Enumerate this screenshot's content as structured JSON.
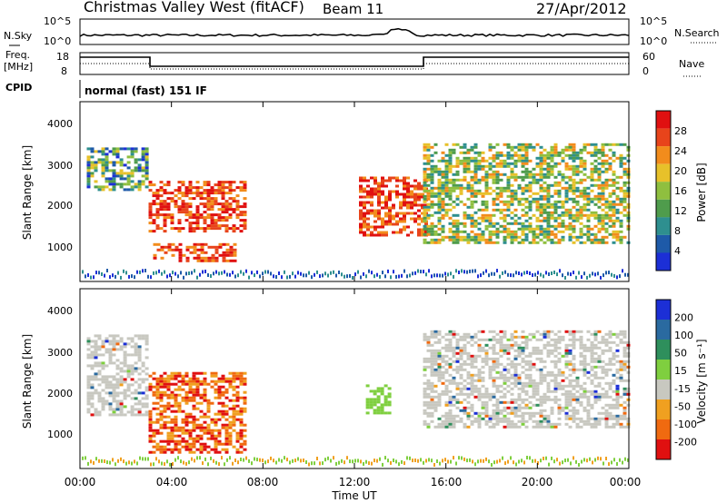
{
  "header": {
    "station": "Christmas Valley West (fitACF)",
    "beam": "Beam 11",
    "date": "27/Apr/2012"
  },
  "noise_panel": {
    "left_label": "N.Sky",
    "left_ticks": [
      "10^5",
      "10^0"
    ],
    "right_label": "N.Search",
    "right_ticks": [
      "10^5",
      "10^0"
    ]
  },
  "freq_panel": {
    "left_label_1": "Freq.",
    "left_label_2": "[MHz]",
    "left_ticks": [
      "18",
      "8"
    ],
    "right_label": "Nave",
    "right_ticks": [
      "60",
      "0"
    ]
  },
  "cpid": {
    "label": "CPID",
    "value": "normal (fast) 151 IF"
  },
  "x_axis": {
    "label": "Time UT",
    "ticks": [
      "00:00",
      "04:00",
      "08:00",
      "12:00",
      "16:00",
      "20:00",
      "00:00"
    ]
  },
  "chart_data": [
    {
      "type": "heatmap",
      "name": "power",
      "ylabel": "Slant Range [km]",
      "yticks": [
        "1000",
        "2000",
        "3000",
        "4000"
      ],
      "xlim": [
        0,
        24
      ],
      "ylim": [
        180,
        4500
      ],
      "colorbar": {
        "label": "Power [dB]",
        "ticks": [
          "4",
          "8",
          "12",
          "16",
          "20",
          "24",
          "28"
        ],
        "colors": [
          "#1c2fd6",
          "#1e5aa8",
          "#2e8f8f",
          "#4f9c4c",
          "#8fbf3f",
          "#e7c12a",
          "#f28c1c",
          "#e8441b",
          "#e01010"
        ]
      },
      "regions": [
        {
          "t": [
            0.3,
            3.0
          ],
          "r": [
            2400,
            3400
          ],
          "level": "low-mid"
        },
        {
          "t": [
            3.0,
            7.2
          ],
          "r": [
            1400,
            2600
          ],
          "level": "high"
        },
        {
          "t": [
            3.2,
            6.8
          ],
          "r": [
            700,
            1100
          ],
          "level": "high"
        },
        {
          "t": [
            12.2,
            15.2
          ],
          "r": [
            1300,
            2700
          ],
          "level": "high"
        },
        {
          "t": [
            15.0,
            24.0
          ],
          "r": [
            1100,
            3500
          ],
          "level": "mid"
        }
      ]
    },
    {
      "type": "heatmap",
      "name": "velocity",
      "ylabel": "Slant Range [km]",
      "yticks": [
        "1000",
        "2000",
        "3000",
        "4000"
      ],
      "xlim": [
        0,
        24
      ],
      "ylim": [
        180,
        4500
      ],
      "colorbar": {
        "label": "Velocity [m s⁻¹]",
        "ticks": [
          "200",
          "100",
          "50",
          "15",
          "-15",
          "-50",
          "-100",
          "-200"
        ],
        "colors": [
          "#1c2fd6",
          "#2a6aa0",
          "#2e8f5c",
          "#7fcf3f",
          "#c8c8c0",
          "#f0a020",
          "#f06a10",
          "#e01010"
        ]
      },
      "regions": [
        {
          "t": [
            0.3,
            3.0
          ],
          "r": [
            1500,
            3400
          ],
          "level": "ground"
        },
        {
          "t": [
            3.0,
            7.2
          ],
          "r": [
            600,
            2500
          ],
          "level": "-50"
        },
        {
          "t": [
            12.5,
            13.5
          ],
          "r": [
            1500,
            2200
          ],
          "level": "+50"
        },
        {
          "t": [
            15.0,
            24.0
          ],
          "r": [
            1200,
            3500
          ],
          "level": "ground"
        }
      ]
    }
  ]
}
